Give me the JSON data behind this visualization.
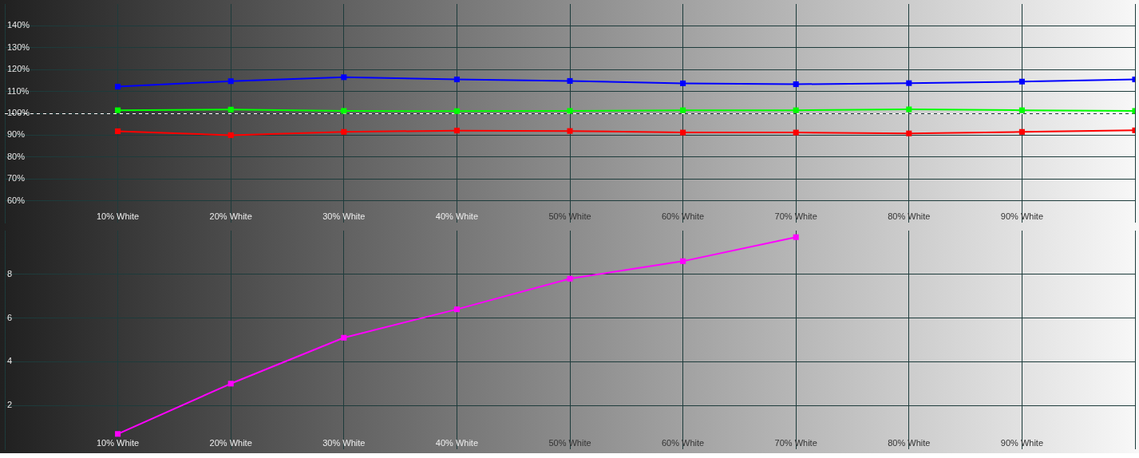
{
  "chart_data": [
    {
      "type": "line",
      "x": [
        10,
        20,
        30,
        40,
        50,
        60,
        70,
        80,
        90,
        100
      ],
      "xlim": [
        0,
        100
      ],
      "xticks": [
        {
          "value": 0,
          "label": null
        },
        {
          "value": 10,
          "label": "10% White"
        },
        {
          "value": 20,
          "label": "20% White"
        },
        {
          "value": 30,
          "label": "30% White"
        },
        {
          "value": 40,
          "label": "40% White"
        },
        {
          "value": 50,
          "label": "50% White"
        },
        {
          "value": 60,
          "label": "60% White"
        },
        {
          "value": 70,
          "label": "70% White"
        },
        {
          "value": 80,
          "label": "80% White"
        },
        {
          "value": 90,
          "label": "90% White"
        },
        {
          "value": 100,
          "label": null
        }
      ],
      "ylim": [
        50,
        150
      ],
      "yticks": [
        {
          "value": 60,
          "label": "60%"
        },
        {
          "value": 70,
          "label": "70%"
        },
        {
          "value": 80,
          "label": "80%"
        },
        {
          "value": 90,
          "label": "90%"
        },
        {
          "value": 100,
          "label": "100%"
        },
        {
          "value": 110,
          "label": "110%"
        },
        {
          "value": 120,
          "label": "120%"
        },
        {
          "value": 130,
          "label": "130%"
        },
        {
          "value": 140,
          "label": "140%"
        }
      ],
      "series": [
        {
          "color": "#ff0000",
          "values": [
            91.8,
            90.0,
            91.5,
            92.1,
            91.9,
            91.2,
            91.2,
            90.8,
            91.5,
            92.2
          ]
        },
        {
          "color": "#00ff00",
          "values": [
            101.4,
            101.7,
            101.1,
            101.0,
            101.1,
            101.4,
            101.4,
            101.8,
            101.4,
            101.1
          ]
        },
        {
          "color": "#0000ff",
          "values": [
            112.2,
            114.7,
            116.5,
            115.5,
            114.8,
            113.7,
            113.3,
            113.8,
            114.5,
            115.5
          ]
        }
      ],
      "marker": "square",
      "grid": true,
      "ref_lines": [
        {
          "axis": "y",
          "value": 100,
          "color": "#ffffff",
          "line_style": "dashed"
        }
      ]
    },
    {
      "type": "line",
      "xlim": [
        0,
        100
      ],
      "xticks": [
        {
          "value": 0,
          "label": null
        },
        {
          "value": 10,
          "label": "10% White"
        },
        {
          "value": 20,
          "label": "20% White"
        },
        {
          "value": 30,
          "label": "30% White"
        },
        {
          "value": 40,
          "label": "40% White"
        },
        {
          "value": 50,
          "label": "50% White"
        },
        {
          "value": 60,
          "label": "60% White"
        },
        {
          "value": 70,
          "label": "70% White"
        },
        {
          "value": 80,
          "label": "80% White"
        },
        {
          "value": 90,
          "label": "90% White"
        },
        {
          "value": 100,
          "label": null
        }
      ],
      "ylim": [
        0,
        10
      ],
      "yticks": [
        2,
        4,
        6,
        8
      ],
      "series": [
        {
          "color": "#ff00ff",
          "x": [
            10,
            20,
            30,
            40,
            50,
            60,
            70
          ],
          "values": [
            0.7,
            3.0,
            5.1,
            6.4,
            7.8,
            8.6,
            9.7
          ]
        }
      ],
      "marker": "square",
      "grid": true
    }
  ]
}
